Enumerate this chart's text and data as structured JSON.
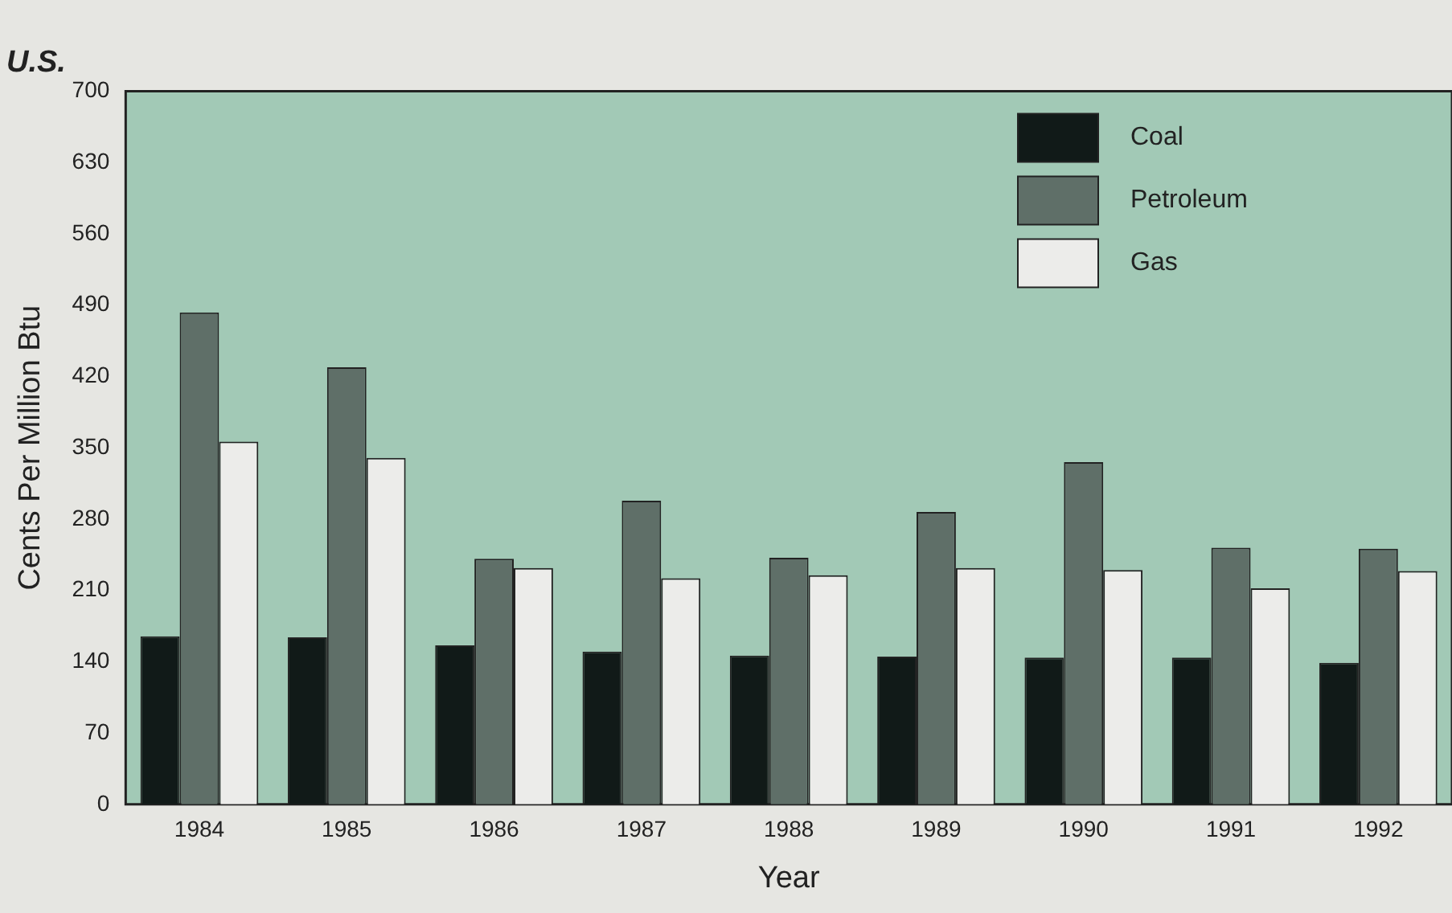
{
  "chart_data": {
    "type": "bar",
    "title": "U.S.",
    "xlabel": "Year",
    "ylabel": "Cents Per Million Btu",
    "categories": [
      "1984",
      "1985",
      "1986",
      "1987",
      "1988",
      "1989",
      "1990",
      "1991",
      "1992"
    ],
    "series": [
      {
        "name": "Coal",
        "color": "#111a18",
        "values": [
          165,
          164,
          156,
          150,
          146,
          145,
          144,
          144,
          139
        ]
      },
      {
        "name": "Petroleum",
        "color": "#5f6f68",
        "values": [
          483,
          429,
          241,
          298,
          242,
          287,
          336,
          252,
          251
        ]
      },
      {
        "name": "Gas",
        "color": "#ececea",
        "values": [
          356,
          340,
          232,
          222,
          225,
          232,
          230,
          212,
          229
        ]
      }
    ],
    "ylim": [
      0,
      700
    ],
    "yticks": [
      0,
      70,
      140,
      210,
      280,
      350,
      420,
      490,
      560,
      630,
      700
    ],
    "grid": false,
    "legend": "top right"
  }
}
